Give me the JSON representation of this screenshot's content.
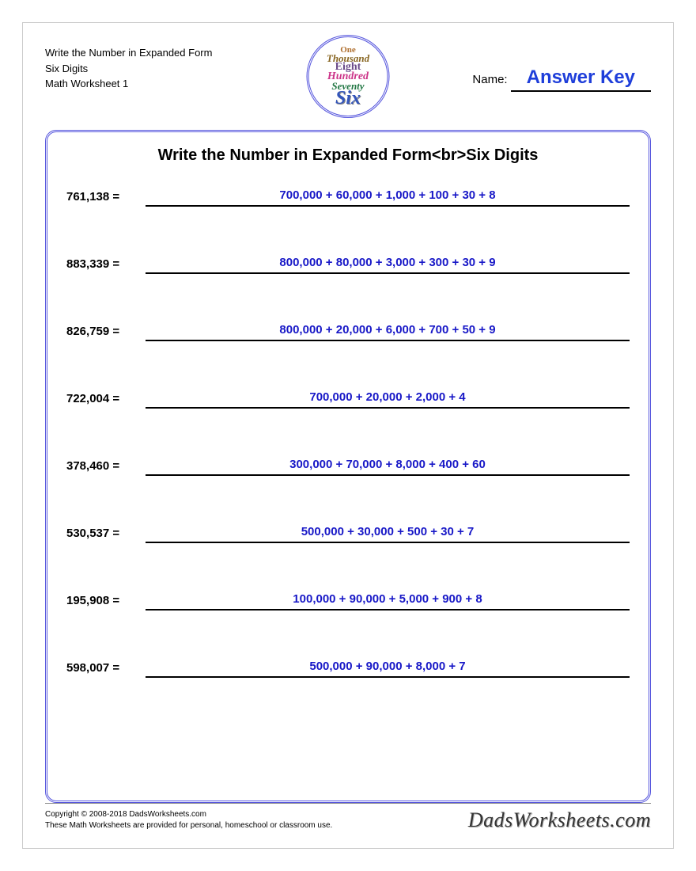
{
  "colors": {
    "answer_text": "#1818c7",
    "title_link": "#1e3eda",
    "border_frame": "#5555dd",
    "text_black": "#000000",
    "background": "#ffffff"
  },
  "header": {
    "line1": "Write the Number in Expanded Form",
    "line2": "Six Digits",
    "line3": "Math Worksheet 1",
    "name_label": "Name:",
    "answer_key": "Answer Key"
  },
  "logo": {
    "l1": "One",
    "l2": "Thousand",
    "l3": "Eight",
    "l4": "Hundred",
    "l5": "Seventy",
    "l6": "Six"
  },
  "worksheet": {
    "title": "Write the Number in Expanded Form<br>Six Digits",
    "problems": [
      {
        "number": "761,138 =",
        "answer": "700,000 + 60,000 + 1,000 + 100 + 30 + 8"
      },
      {
        "number": "883,339 =",
        "answer": "800,000 + 80,000 + 3,000 + 300 + 30 + 9"
      },
      {
        "number": "826,759 =",
        "answer": "800,000 + 20,000 + 6,000 + 700 + 50 + 9"
      },
      {
        "number": "722,004 =",
        "answer": "700,000 + 20,000 + 2,000 + 4"
      },
      {
        "number": "378,460 =",
        "answer": "300,000 + 70,000 + 8,000 + 400 + 60"
      },
      {
        "number": "530,537 =",
        "answer": "500,000 + 30,000 + 500 + 30 + 7"
      },
      {
        "number": "195,908 =",
        "answer": "100,000 + 90,000 + 5,000 + 900 + 8"
      },
      {
        "number": "598,007 =",
        "answer": "500,000 + 90,000 + 8,000 + 7"
      }
    ]
  },
  "footer": {
    "copyright": "Copyright © 2008-2018 DadsWorksheets.com",
    "note": "These Math Worksheets are provided for personal, homeschool or classroom use.",
    "site": "DadsWorksheets.com"
  }
}
